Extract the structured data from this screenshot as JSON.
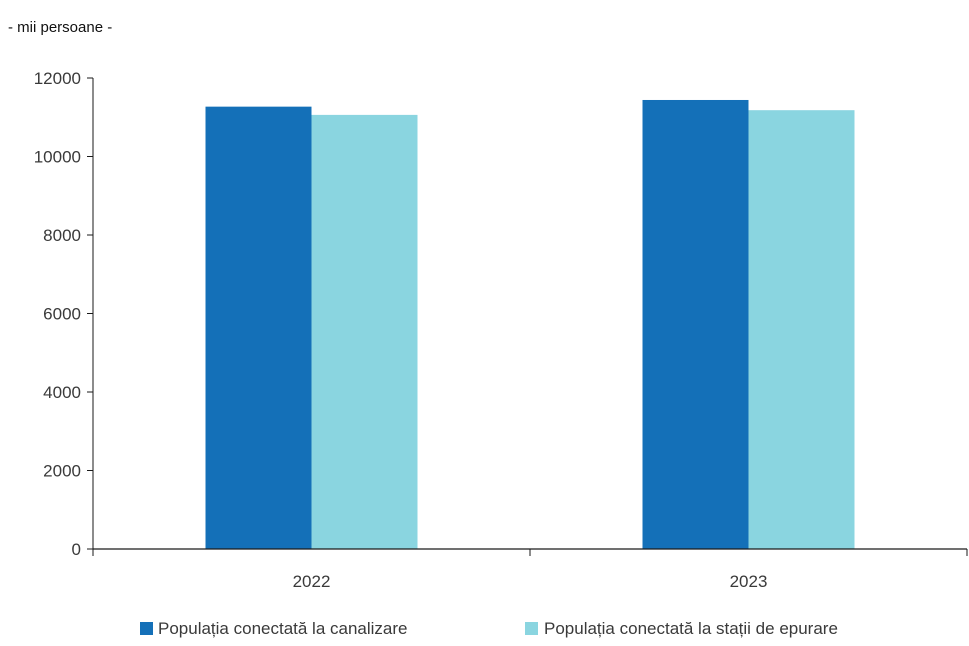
{
  "chart_data": {
    "type": "bar",
    "title": "",
    "unit_label": "- mii persoane -",
    "xlabel": "",
    "ylabel": "",
    "categories": [
      "2022",
      "2023"
    ],
    "series": [
      {
        "name": "Populația conectată la canalizare",
        "color": "#1470b8",
        "values": [
          11270,
          11440
        ]
      },
      {
        "name": "Populația conectată la stații de epurare",
        "color": "#8ad5e0",
        "values": [
          11060,
          11180
        ]
      }
    ],
    "ylim": [
      0,
      12000
    ],
    "yticks": [
      0,
      2000,
      4000,
      6000,
      8000,
      10000,
      12000
    ],
    "grid": false,
    "legend": "bottom"
  }
}
